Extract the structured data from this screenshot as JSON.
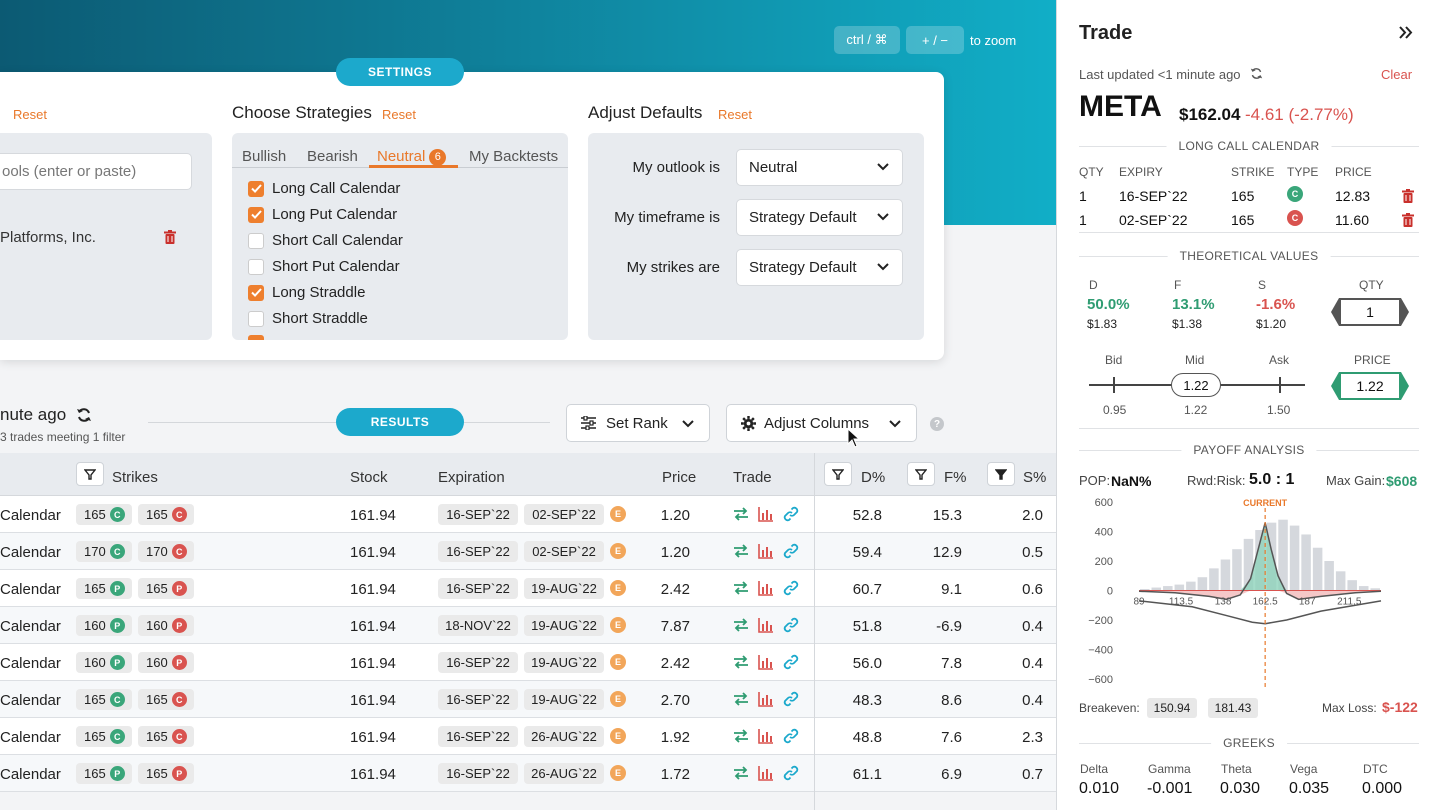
{
  "zoom": {
    "ctrl_label": "ctrl / ⌘",
    "plusminus_label": "+ / −",
    "hint": "to zoom"
  },
  "settings": {
    "pill": "SETTINGS",
    "symbols_reset": "Reset",
    "symbols_placeholder": "ools (enter or paste)",
    "company": "Platforms, Inc.",
    "strategies": {
      "title": "Choose Strategies",
      "reset": "Reset",
      "tabs": {
        "bullish": "Bullish",
        "bearish": "Bearish",
        "neutral": "Neutral",
        "neutral_count": "6",
        "backtests": "My Backtests"
      },
      "items": [
        {
          "label": "Long Call Calendar",
          "checked": true
        },
        {
          "label": "Long Put Calendar",
          "checked": true
        },
        {
          "label": "Short Call Calendar",
          "checked": false
        },
        {
          "label": "Short Put Calendar",
          "checked": false
        },
        {
          "label": "Long Straddle",
          "checked": true
        },
        {
          "label": "Short Straddle",
          "checked": false
        }
      ]
    },
    "defaults": {
      "title": "Adjust Defaults",
      "reset": "Reset",
      "outlook_label": "My outlook is",
      "outlook_value": "Neutral",
      "timeframe_label": "My timeframe is",
      "timeframe_value": "Strategy Default",
      "strikes_label": "My strikes are",
      "strikes_value": "Strategy Default"
    }
  },
  "results": {
    "status": "nute ago",
    "sub": "3 trades meeting 1 filter",
    "pill": "RESULTS",
    "set_rank": "Set Rank",
    "adjust_columns": "Adjust Columns",
    "help": "?"
  },
  "table": {
    "headers": {
      "strikes": "Strikes",
      "stock": "Stock",
      "expiration": "Expiration",
      "price": "Price",
      "trade": "Trade",
      "d": "D%",
      "f": "F%",
      "s": "S%"
    },
    "rows": [
      {
        "name": "Calendar",
        "k1": "165",
        "t1": "C",
        "k2": "165",
        "t2": "C",
        "stock": "161.94",
        "exp1": "16-SEP`22",
        "exp2": "02-SEP`22",
        "e": "E",
        "price": "1.20",
        "d": "52.8",
        "f": "15.3",
        "s": "2.0"
      },
      {
        "name": "Calendar",
        "k1": "170",
        "t1": "C",
        "k2": "170",
        "t2": "C",
        "stock": "161.94",
        "exp1": "16-SEP`22",
        "exp2": "02-SEP`22",
        "e": "E",
        "price": "1.20",
        "d": "59.4",
        "f": "12.9",
        "s": "0.5"
      },
      {
        "name": "Calendar",
        "k1": "165",
        "t1": "P",
        "k2": "165",
        "t2": "P",
        "stock": "161.94",
        "exp1": "16-SEP`22",
        "exp2": "19-AUG`22",
        "e": "E",
        "price": "2.42",
        "d": "60.7",
        "f": "9.1",
        "s": "0.6"
      },
      {
        "name": "Calendar",
        "k1": "160",
        "t1": "P",
        "k2": "160",
        "t2": "P",
        "stock": "161.94",
        "exp1": "18-NOV`22",
        "exp2": "19-AUG`22",
        "e": "E",
        "price": "7.87",
        "d": "51.8",
        "f": "-6.9",
        "s": "0.4"
      },
      {
        "name": "Calendar",
        "k1": "160",
        "t1": "P",
        "k2": "160",
        "t2": "P",
        "stock": "161.94",
        "exp1": "16-SEP`22",
        "exp2": "19-AUG`22",
        "e": "E",
        "price": "2.42",
        "d": "56.0",
        "f": "7.8",
        "s": "0.4"
      },
      {
        "name": "Calendar",
        "k1": "165",
        "t1": "C",
        "k2": "165",
        "t2": "C",
        "stock": "161.94",
        "exp1": "16-SEP`22",
        "exp2": "19-AUG`22",
        "e": "E",
        "price": "2.70",
        "d": "48.3",
        "f": "8.6",
        "s": "0.4"
      },
      {
        "name": "Calendar",
        "k1": "165",
        "t1": "C",
        "k2": "165",
        "t2": "C",
        "stock": "161.94",
        "exp1": "16-SEP`22",
        "exp2": "26-AUG`22",
        "e": "E",
        "price": "1.92",
        "d": "48.8",
        "f": "7.6",
        "s": "2.3"
      },
      {
        "name": "Calendar",
        "k1": "165",
        "t1": "P",
        "k2": "165",
        "t2": "P",
        "stock": "161.94",
        "exp1": "16-SEP`22",
        "exp2": "26-AUG`22",
        "e": "E",
        "price": "1.72",
        "d": "61.1",
        "f": "6.9",
        "s": "0.7"
      }
    ]
  },
  "trade": {
    "title": "Trade",
    "updated": "Last updated <1 minute ago",
    "clear": "Clear",
    "symbol": "META",
    "price": "$162.04",
    "change": "-4.61 (-2.77%)",
    "strategy_name": "LONG CALL CALENDAR",
    "legs_headers": {
      "qty": "QTY",
      "expiry": "EXPIRY",
      "strike": "STRIKE",
      "type": "TYPE",
      "price": "PRICE"
    },
    "legs": [
      {
        "qty": "1",
        "expiry": "16-SEP`22",
        "strike": "165",
        "type": "C",
        "price": "12.83"
      },
      {
        "qty": "1",
        "expiry": "02-SEP`22",
        "strike": "165",
        "type": "C",
        "price": "11.60"
      }
    ],
    "theoretical_title": "THEORETICAL VALUES",
    "tv": [
      {
        "label": "D",
        "pct": "50.0%",
        "amt": "$1.83"
      },
      {
        "label": "F",
        "pct": "13.1%",
        "amt": "$1.38"
      },
      {
        "label": "S",
        "pct": "-1.6%",
        "amt": "$1.20"
      }
    ],
    "qty_label": "QTY",
    "qty_value": "1",
    "bid_label": "Bid",
    "mid_label": "Mid",
    "ask_label": "Ask",
    "bid": "0.95",
    "mid": "1.22",
    "ask": "1.50",
    "mid_chip": "1.22",
    "price_label": "PRICE",
    "price_value": "1.22",
    "payoff_title": "PAYOFF ANALYSIS",
    "pop_label": "POP:",
    "pop": "NaN%",
    "rr_label": "Rwd:Risk:",
    "rr": "5.0 : 1",
    "maxgain_label": "Max Gain:",
    "maxgain": "$608",
    "breakeven_label": "Breakeven:",
    "be1": "150.94",
    "be2": "181.43",
    "maxloss_label": "Max Loss:",
    "maxloss": "$-122",
    "greeks_title": "GREEKS",
    "greeks": [
      {
        "label": "Delta",
        "value": "0.010"
      },
      {
        "label": "Gamma",
        "value": "-0.001"
      },
      {
        "label": "Theta",
        "value": "0.030"
      },
      {
        "label": "Vega",
        "value": "0.035"
      },
      {
        "label": "DTC",
        "value": "0.000"
      }
    ]
  },
  "chart_data": {
    "type": "area",
    "annotations": [
      "CURRENT"
    ],
    "yticks": [
      "600",
      "400",
      "200",
      "0",
      "−200",
      "−400",
      "−600"
    ],
    "xticks": [
      "89",
      "113.5",
      "138",
      "162.5",
      "187",
      "211.5"
    ],
    "ylim": [
      -600,
      600
    ],
    "xlim": [
      89,
      230
    ],
    "current_x": 162.5,
    "payoff_expiry": {
      "x": [
        89,
        110,
        130,
        140,
        148,
        154,
        158,
        162.5,
        166,
        170,
        175,
        182,
        195,
        215,
        230
      ],
      "y": [
        -5,
        -15,
        -40,
        -60,
        -30,
        80,
        260,
        460,
        280,
        100,
        -20,
        -60,
        -40,
        -15,
        -5
      ]
    },
    "payoff_today": {
      "x": [
        89,
        120,
        140,
        155,
        162.5,
        175,
        195,
        230
      ],
      "y": [
        -70,
        -110,
        -170,
        -215,
        -225,
        -200,
        -140,
        -70
      ]
    },
    "histogram": [
      10,
      20,
      30,
      40,
      60,
      90,
      150,
      210,
      280,
      350,
      410,
      460,
      480,
      440,
      380,
      290,
      200,
      130,
      70,
      30,
      15
    ],
    "colors": {
      "profit": "#8fd3bc",
      "loss": "#f4c2c2",
      "line": "#555555",
      "current": "#e9782a",
      "hist": "#d5d8dd"
    }
  }
}
